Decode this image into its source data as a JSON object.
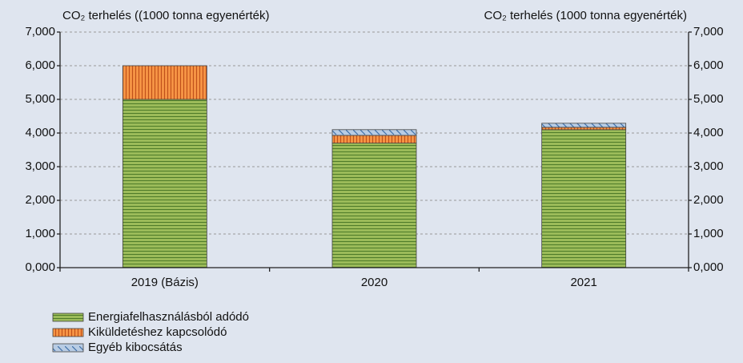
{
  "chart_data": {
    "type": "stacked_bar",
    "y_label": "CO₂ terhelés ((1000 tonna egyenérték)",
    "y2_label": "CO₂ terhelés (1000 tonna egyenérték)",
    "categories": [
      "2019 (Bázis)",
      "2020",
      "2021"
    ],
    "series": [
      {
        "name": "Energiafelhasználásból adódó",
        "color": "#9bbb59",
        "values": [
          5000,
          3700,
          4100
        ]
      },
      {
        "name": "Kiküldetéshez kapcsolódó",
        "color": "#f79646",
        "values": [
          1000,
          230,
          70
        ]
      },
      {
        "name": "Egyéb kibocsátás",
        "color": "#b8cce4",
        "values": [
          0,
          170,
          120
        ]
      }
    ],
    "ylim": [
      0,
      7000
    ],
    "yticks": [
      {
        "value": 0,
        "label": "0,000"
      },
      {
        "value": 1000,
        "label": "1,000"
      },
      {
        "value": 2000,
        "label": "2,000"
      },
      {
        "value": 3000,
        "label": "3,000"
      },
      {
        "value": 4000,
        "label": "4,000"
      },
      {
        "value": 5000,
        "label": "5,000"
      },
      {
        "value": 6000,
        "label": "6,000"
      },
      {
        "value": 7000,
        "label": "7,000"
      }
    ],
    "y2lim": [
      0,
      7000
    ],
    "y2ticks": [
      {
        "value": 0,
        "label": "0,000"
      },
      {
        "value": 1000,
        "label": "1,000"
      },
      {
        "value": 2000,
        "label": "2,000"
      },
      {
        "value": 3000,
        "label": "3,000"
      },
      {
        "value": 4000,
        "label": "4,000"
      },
      {
        "value": 5000,
        "label": "5,000"
      },
      {
        "value": 6000,
        "label": "6,000"
      },
      {
        "value": 7000,
        "label": "7,000"
      }
    ],
    "grid": true
  }
}
